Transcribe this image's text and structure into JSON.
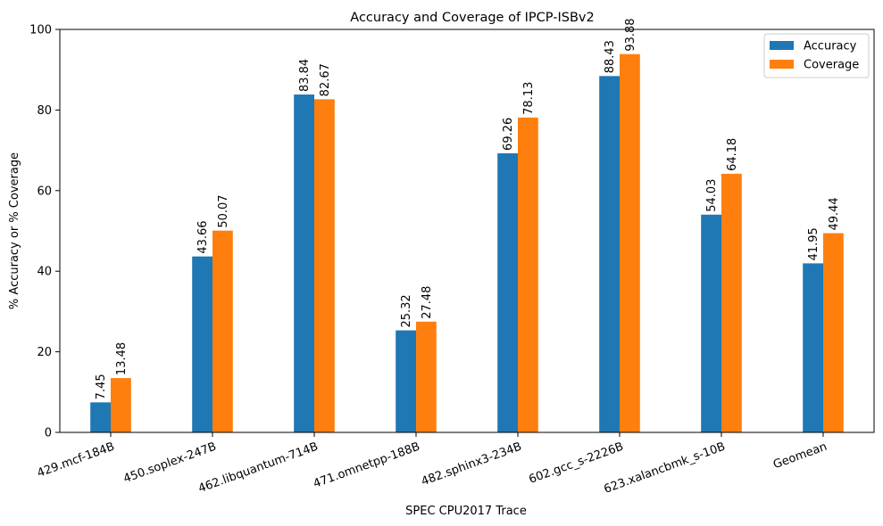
{
  "chart_data": {
    "type": "bar",
    "title": "Accuracy and Coverage of IPCP-ISBv2",
    "xlabel": "SPEC CPU2017 Trace",
    "ylabel": "% Accuracy or % Coverage",
    "ylim": [
      0,
      100
    ],
    "yticks": [
      0,
      20,
      40,
      60,
      80,
      100
    ],
    "grid": false,
    "legend_position": "top-right",
    "categories": [
      "429.mcf-184B",
      "450.soplex-247B",
      "462.libquantum-714B",
      "471.omnetpp-188B",
      "482.sphinx3-234B",
      "602.gcc_s-2226B",
      "623.xalancbmk_s-10B",
      "Geomean"
    ],
    "series": [
      {
        "name": "Accuracy",
        "color": "#1f77b4",
        "values": [
          7.45,
          43.66,
          83.84,
          25.32,
          69.26,
          88.43,
          54.03,
          41.95
        ],
        "labels": [
          "7.45",
          "43.66",
          "83.84",
          "25.32",
          "69.26",
          "88.43",
          "54.03",
          "41.95"
        ]
      },
      {
        "name": "Coverage",
        "color": "#ff7f0e",
        "values": [
          13.48,
          50.07,
          82.67,
          27.48,
          78.13,
          93.88,
          64.18,
          49.44
        ],
        "labels": [
          "13.48",
          "50.07",
          "82.67",
          "27.48",
          "78.13",
          "93.88",
          "64.18",
          "49.44"
        ]
      }
    ]
  }
}
